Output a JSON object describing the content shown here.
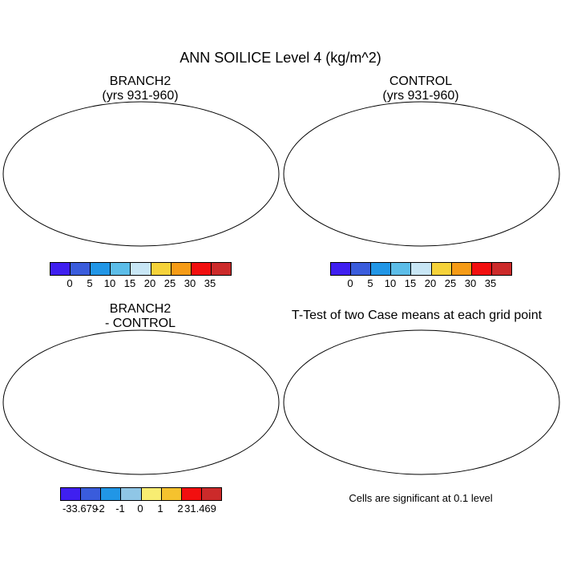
{
  "title": "ANN SOILICE Level 4 (kg/m^2)",
  "panels": {
    "branch": {
      "title_line1": "BRANCH2",
      "title_line2": "(yrs 931-960)"
    },
    "control": {
      "title_line1": "CONTROL",
      "title_line2": "(yrs 931-960)"
    },
    "diff": {
      "title_line1": "BRANCH2",
      "title_line2": "- CONTROL"
    },
    "ttest": {
      "title": "T-Test of two Case means at each grid point",
      "note": "Cells are significant at 0.1 level"
    }
  },
  "colorbars": {
    "main": {
      "colors": [
        "#3f1ff0",
        "#3a5cdc",
        "#2196e6",
        "#5cbde8",
        "#c8e6f5",
        "#f5d23a",
        "#f59b16",
        "#f20f0f",
        "#cc2a2a"
      ],
      "labels": [
        "0",
        "5",
        "10",
        "15",
        "20",
        "25",
        "30",
        "35"
      ]
    },
    "diff": {
      "colors": [
        "#3f1ff0",
        "#3a5cdc",
        "#2196e6",
        "#8fc6e6",
        "#f8ed72",
        "#f5c22e",
        "#f20f0f",
        "#cc2a2a"
      ],
      "labels": [
        "-33.679",
        "-2",
        "-1",
        "0",
        "1",
        "2",
        "31.469"
      ]
    }
  },
  "map_colors": {
    "ocean": "#ffffff",
    "land_main": "#3a5cdc",
    "land_diff": "#f8ed72",
    "outline": "#000000",
    "significant": "#e00000"
  }
}
